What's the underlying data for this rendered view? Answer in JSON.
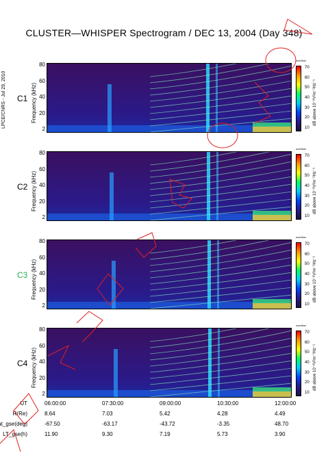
{
  "title": "CLUSTER—WHISPER Spectrogram / DEC 13, 2004 (Day 348)",
  "side_label": "LPCE/CNRS - Jul 29, 2010",
  "y_axis_label": "Frequency (kHz)",
  "colorbar": {
    "top_label": "overflow",
    "unit_label": "dB above 10⁻⁸V²m⁻²Hz⁻¹",
    "ticks": [
      "70",
      "60",
      "50",
      "40",
      "30",
      "20",
      "10"
    ],
    "stops": [
      "#ff0000",
      "#ff9900",
      "#ffff00",
      "#00ff66",
      "#00ccff",
      "#0044ff",
      "#2a1a8a",
      "#20104a"
    ]
  },
  "panels": [
    {
      "sat": "C1",
      "sat_color": "#000000"
    },
    {
      "sat": "C2",
      "sat_color": "#000000"
    },
    {
      "sat": "C3",
      "sat_color": "#22b14c"
    },
    {
      "sat": "C4",
      "sat_color": "#000000"
    }
  ],
  "chart_data": {
    "type": "heatmap",
    "title": "CLUSTER—WHISPER Spectrogram / DEC 13, 2004 (Day 348)",
    "xlabel": "UT",
    "ylabel": "Frequency (kHz)",
    "ylim": [
      2,
      80
    ],
    "yticks": [
      "80",
      "60",
      "40",
      "20",
      "2"
    ],
    "x_ticks": [
      "06:00:00",
      "07:30:00",
      "09:00:00",
      "10:30:00",
      "12:00:00"
    ],
    "colorbar_range_db": [
      10,
      70
    ],
    "series": [
      "C1",
      "C2",
      "C3",
      "C4"
    ]
  },
  "orbit_table": {
    "rows": [
      {
        "label": "UT",
        "values": [
          "06:00:00",
          "07:30:00",
          "09:00:00",
          "10:30:00",
          "12:00:00"
        ]
      },
      {
        "label": "R(Re)",
        "values": [
          "8.64",
          "7.03",
          "5.42",
          "4.28",
          "4.49"
        ]
      },
      {
        "label": "Lat_gse(deg)",
        "values": [
          "-67.50",
          "-63.17",
          "-43.72",
          "-3.35",
          "48.70"
        ]
      },
      {
        "label": "LT_gse(h)",
        "values": [
          "11.90",
          "9.30",
          "7.19",
          "5.73",
          "3.90"
        ]
      }
    ]
  }
}
